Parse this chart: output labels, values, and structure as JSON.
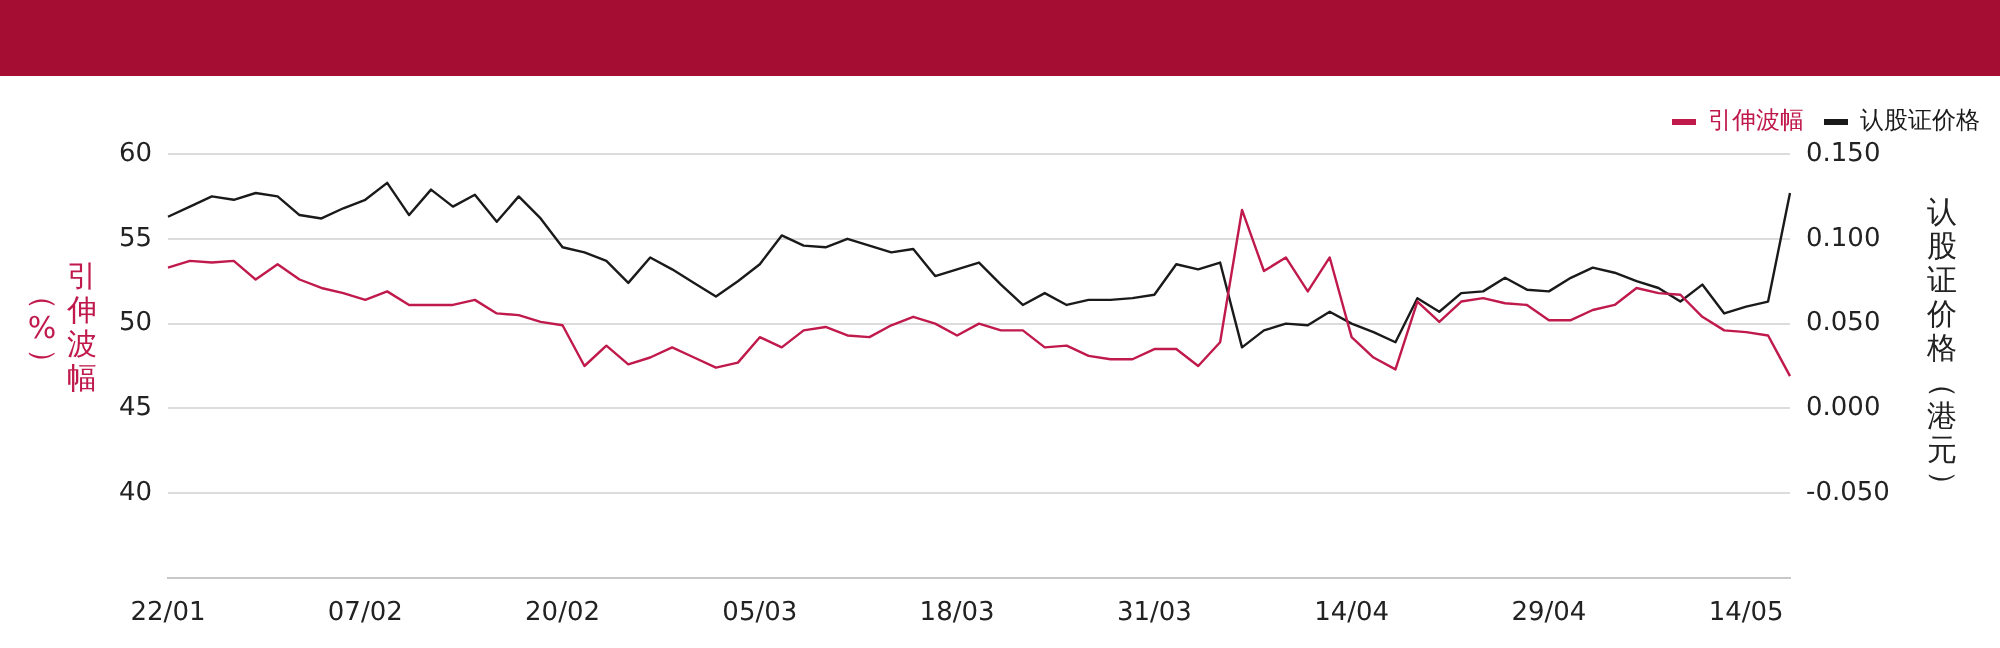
{
  "chart_data": {
    "type": "line",
    "ylabel": "引伸波幅（%）",
    "y2label": "认股证价格（港元）",
    "categories": [
      "22/01",
      null,
      null,
      null,
      null,
      null,
      null,
      null,
      null,
      "07/02",
      null,
      null,
      null,
      null,
      null,
      null,
      null,
      null,
      "20/02",
      null,
      null,
      null,
      null,
      null,
      null,
      null,
      null,
      "05/03",
      null,
      null,
      null,
      null,
      null,
      null,
      null,
      null,
      "18/03",
      null,
      null,
      null,
      null,
      null,
      null,
      null,
      null,
      "31/03",
      null,
      null,
      null,
      null,
      null,
      null,
      null,
      null,
      "14/04",
      null,
      null,
      null,
      null,
      null,
      null,
      null,
      null,
      "29/04",
      null,
      null,
      null,
      null,
      null,
      null,
      null,
      null,
      "14/05",
      null,
      null
    ],
    "series": [
      {
        "name": "引伸波幅",
        "color": "#c0194b",
        "values": [
          53.3,
          53.7,
          53.6,
          53.7,
          52.6,
          53.5,
          52.6,
          52.1,
          51.8,
          51.4,
          51.9,
          51.1,
          51.1,
          51.1,
          51.4,
          50.6,
          50.5,
          50.1,
          49.9,
          47.5,
          48.7,
          47.6,
          48.0,
          48.6,
          48.0,
          47.4,
          47.7,
          49.2,
          48.6,
          49.6,
          49.8,
          49.3,
          49.2,
          49.9,
          50.4,
          50.0,
          49.3,
          50.0,
          49.6,
          49.6,
          48.6,
          48.7,
          48.1,
          47.9,
          47.9,
          48.5,
          48.5,
          47.5,
          48.9,
          56.7,
          53.1,
          53.9,
          51.9,
          53.9,
          49.2,
          48.0,
          47.3,
          51.3,
          50.1,
          51.3,
          51.5,
          51.2,
          51.1,
          50.2,
          50.2,
          50.8,
          51.1,
          52.1,
          51.8,
          51.7,
          50.4,
          49.6,
          49.5,
          49.3,
          46.9
        ]
      },
      {
        "name": "认股证价格",
        "color": "#1a1a1a",
        "axis": "y2",
        "values": [
          0.113,
          0.119,
          0.125,
          0.123,
          0.127,
          0.125,
          0.114,
          0.112,
          0.118,
          0.123,
          0.133,
          0.114,
          0.129,
          0.119,
          0.126,
          0.11,
          0.125,
          0.112,
          0.095,
          0.092,
          0.087,
          0.074,
          0.089,
          0.082,
          0.074,
          0.066,
          0.075,
          0.085,
          0.102,
          0.096,
          0.095,
          0.1,
          0.096,
          0.092,
          0.094,
          0.078,
          0.082,
          0.086,
          0.073,
          0.061,
          0.068,
          0.061,
          0.064,
          0.064,
          0.065,
          0.067,
          0.085,
          0.082,
          0.086,
          0.036,
          0.046,
          0.05,
          0.049,
          0.057,
          0.05,
          0.045,
          0.039,
          0.065,
          0.057,
          0.068,
          0.069,
          0.077,
          0.07,
          0.069,
          0.077,
          0.083,
          0.08,
          0.075,
          0.071,
          0.063,
          0.073,
          0.056,
          0.06,
          0.063,
          0.127
        ]
      }
    ],
    "ylim": [
      35,
      60
    ],
    "yticks": [
      40,
      45,
      50,
      55,
      60
    ],
    "y2lim": [
      -0.1,
      0.15
    ],
    "y2ticks": [
      {
        "value": -0.05,
        "label": "-0.050"
      },
      {
        "value": 0,
        "label": "0.000"
      },
      {
        "value": 0.05,
        "label": "0.050"
      },
      {
        "value": 0.1,
        "label": "0.100"
      },
      {
        "value": 0.15,
        "label": "0.150"
      }
    ],
    "grid": "y",
    "legend": "top right",
    "marker": "none",
    "line_style": "solid"
  }
}
